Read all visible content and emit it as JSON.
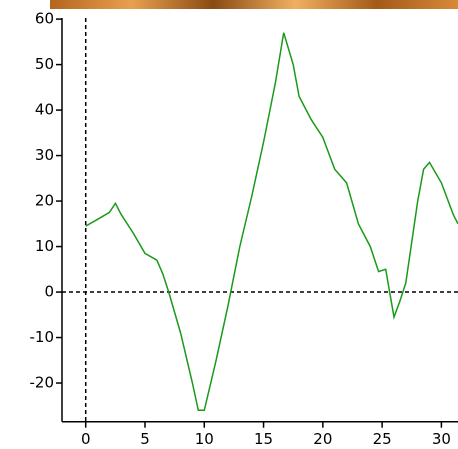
{
  "chart_data": {
    "type": "line",
    "x": [
      0,
      1,
      2,
      2.5,
      3,
      4,
      5,
      6,
      6.5,
      7,
      8,
      9,
      9.5,
      10,
      11,
      12,
      13,
      14,
      15,
      16,
      16.7,
      17.5,
      18,
      19,
      20,
      21,
      22,
      23,
      24,
      24.7,
      25.3,
      26,
      26.5,
      27,
      28,
      28.5,
      29,
      30,
      31,
      31.4
    ],
    "series": [
      {
        "color": "#1a9a1a",
        "values": [
          14.5,
          16,
          17.5,
          19.5,
          17,
          13,
          8.5,
          7,
          4,
          0,
          -9,
          -20,
          -26,
          -26,
          -15,
          -3,
          10,
          21,
          33,
          46,
          57,
          50,
          43,
          38,
          34,
          27,
          24,
          15,
          10,
          4.5,
          5,
          -5.5,
          -2,
          2,
          20,
          27,
          28.5,
          24,
          17,
          15
        ]
      }
    ],
    "xlim": [
      -2,
      31.4
    ],
    "ylim": [
      -28.5,
      62
    ],
    "xticks": [
      0,
      5,
      10,
      15,
      20,
      25,
      30
    ],
    "yticks": [
      -20,
      -10,
      0,
      10,
      20,
      30,
      40,
      50,
      60
    ],
    "zero_lines": true
  }
}
